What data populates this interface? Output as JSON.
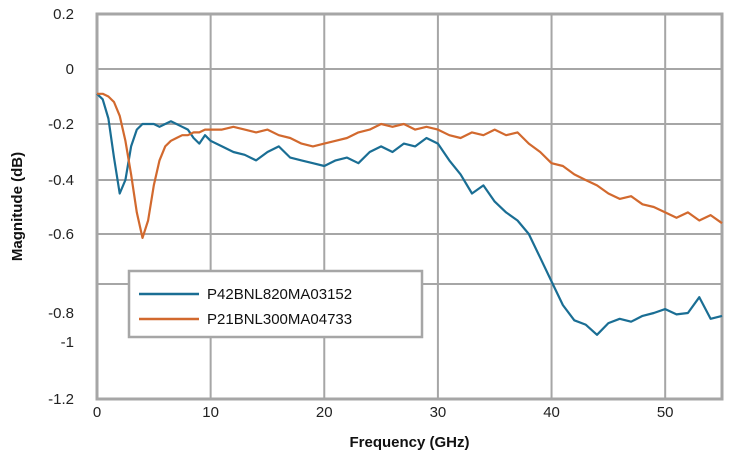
{
  "chart_data": {
    "type": "line",
    "title": "",
    "xlabel": "Frequency (GHz)",
    "ylabel": "Magnitude (dB)",
    "xlim": [
      0,
      55
    ],
    "ylim": [
      -1.2,
      0.2
    ],
    "grid": true,
    "legend_position": "bottom-left",
    "x_ticks": [
      0,
      10,
      20,
      30,
      40,
      50
    ],
    "x_tick_labels": [
      "0",
      "10",
      "20",
      "30",
      "40",
      "50"
    ],
    "y_ticks": [
      0.2,
      0,
      -0.2,
      -0.4,
      -0.6,
      -0.8,
      -1,
      -1.2
    ],
    "y_tick_labels": [
      "0.2",
      "0",
      "-0.2",
      "-0.4",
      "-0.6",
      "-0.8",
      "-1",
      "-1.2"
    ],
    "series": [
      {
        "name": "P42BNL820MA03152",
        "color": "#1a6e94",
        "x": [
          0,
          0.5,
          1,
          1.5,
          2,
          2.5,
          3,
          3.5,
          4,
          4.5,
          5,
          5.5,
          6,
          6.5,
          7,
          7.5,
          8,
          8.5,
          9,
          9.5,
          10,
          11,
          12,
          13,
          14,
          15,
          16,
          17,
          18,
          19,
          20,
          21,
          22,
          23,
          24,
          25,
          26,
          27,
          28,
          29,
          30,
          31,
          32,
          33,
          34,
          35,
          36,
          37,
          38,
          39,
          40,
          41,
          42,
          43,
          44,
          45,
          46,
          47,
          48,
          49,
          50,
          51,
          52,
          53,
          54,
          55
        ],
        "y": [
          -0.09,
          -0.11,
          -0.18,
          -0.32,
          -0.45,
          -0.4,
          -0.28,
          -0.22,
          -0.2,
          -0.2,
          -0.2,
          -0.21,
          -0.2,
          -0.19,
          -0.2,
          -0.21,
          -0.22,
          -0.25,
          -0.27,
          -0.24,
          -0.26,
          -0.28,
          -0.3,
          -0.31,
          -0.33,
          -0.3,
          -0.28,
          -0.32,
          -0.33,
          -0.34,
          -0.35,
          -0.33,
          -0.32,
          -0.34,
          -0.3,
          -0.28,
          -0.3,
          -0.27,
          -0.28,
          -0.25,
          -0.27,
          -0.33,
          -0.38,
          -0.45,
          -0.42,
          -0.48,
          -0.52,
          -0.55,
          -0.6,
          -0.66,
          -0.72,
          -0.78,
          -0.85,
          -0.88,
          -0.95,
          -0.87,
          -0.84,
          -0.86,
          -0.82,
          -0.8,
          -0.79,
          -0.81,
          -0.8,
          -0.76,
          -0.84,
          -0.82
        ]
      },
      {
        "name": "P21BNL300MA04733",
        "color": "#d2692e",
        "x": [
          0,
          0.5,
          1,
          1.5,
          2,
          2.5,
          3,
          3.5,
          4,
          4.5,
          5,
          5.5,
          6,
          6.5,
          7,
          7.5,
          8,
          8.5,
          9,
          9.5,
          10,
          11,
          12,
          13,
          14,
          15,
          16,
          17,
          18,
          19,
          20,
          21,
          22,
          23,
          24,
          25,
          26,
          27,
          28,
          29,
          30,
          31,
          32,
          33,
          34,
          35,
          36,
          37,
          38,
          39,
          40,
          41,
          42,
          43,
          44,
          45,
          46,
          47,
          48,
          49,
          50,
          51,
          52,
          53,
          54,
          55
        ],
        "y": [
          -0.09,
          -0.09,
          -0.1,
          -0.12,
          -0.17,
          -0.26,
          -0.38,
          -0.52,
          -0.61,
          -0.55,
          -0.42,
          -0.33,
          -0.28,
          -0.26,
          -0.25,
          -0.24,
          -0.24,
          -0.23,
          -0.23,
          -0.22,
          -0.22,
          -0.22,
          -0.21,
          -0.22,
          -0.23,
          -0.22,
          -0.24,
          -0.25,
          -0.27,
          -0.28,
          -0.27,
          -0.26,
          -0.25,
          -0.23,
          -0.22,
          -0.2,
          -0.21,
          -0.2,
          -0.22,
          -0.21,
          -0.22,
          -0.24,
          -0.25,
          -0.23,
          -0.24,
          -0.22,
          -0.24,
          -0.23,
          -0.27,
          -0.3,
          -0.34,
          -0.35,
          -0.38,
          -0.4,
          -0.42,
          -0.45,
          -0.47,
          -0.46,
          -0.49,
          -0.5,
          -0.52,
          -0.54,
          -0.52,
          -0.55,
          -0.53,
          -0.56
        ]
      }
    ]
  }
}
